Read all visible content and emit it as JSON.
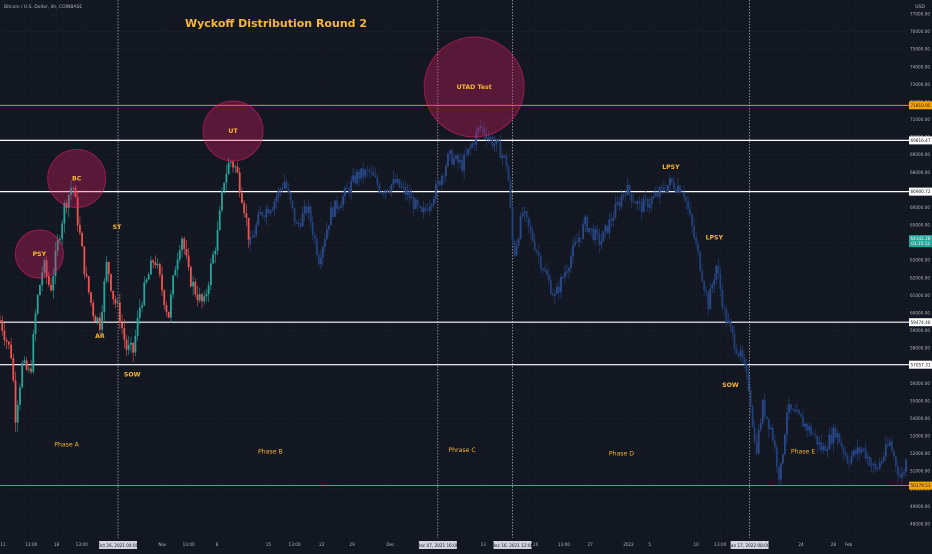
{
  "header": {
    "symbol_line": "Bitcoin / U.S. Dollar, 4h, COINBASE",
    "currency": "USD"
  },
  "chart_data": {
    "type": "candlestick",
    "title": "Wyckoff Distribution Round 2",
    "xlabel": "",
    "ylabel": "",
    "ylim": [
      47200,
      77800
    ],
    "y_ticks": [
      48000,
      49000,
      50000,
      51000,
      52000,
      53000,
      54000,
      55000,
      56000,
      57000,
      58000,
      59000,
      60000,
      61000,
      62000,
      63000,
      64000,
      65000,
      66000,
      67000,
      68000,
      69000,
      70000,
      71000,
      72000,
      73000,
      74000,
      75000,
      76000,
      77000
    ],
    "y_tick_labels": [
      "48000.00",
      "49000.00",
      "50000.00",
      "51000.00",
      "52000.00",
      "53000.00",
      "54000.00",
      "55000.00",
      "56000.00",
      "57000.00",
      "58000.00",
      "59000.00",
      "60000.00",
      "61000.00",
      "62000.00",
      "63000.00",
      "64000.00",
      "65000.00",
      "66000.00",
      "67000.00",
      "68000.00",
      "69000.00",
      "70000.00",
      "71000.00",
      "72000.00",
      "73000.00",
      "74000.00",
      "75000.00",
      "76000.00",
      "77000.00"
    ],
    "x_ticks": [
      {
        "x": 0.3,
        "label": "11"
      },
      {
        "x": 3.1,
        "label": "13:00"
      },
      {
        "x": 5.6,
        "label": "18"
      },
      {
        "x": 8.1,
        "label": "13:00"
      },
      {
        "x": 16.1,
        "label": "Nov"
      },
      {
        "x": 18.7,
        "label": "13:00"
      },
      {
        "x": 21.5,
        "label": "8"
      },
      {
        "x": 26.6,
        "label": "15"
      },
      {
        "x": 29.2,
        "label": "13:00"
      },
      {
        "x": 31.9,
        "label": "22"
      },
      {
        "x": 34.9,
        "label": "29"
      },
      {
        "x": 38.7,
        "label": "Dec"
      },
      {
        "x": 47.9,
        "label": "13"
      },
      {
        "x": 53.1,
        "label": "20"
      },
      {
        "x": 55.9,
        "label": "13:00"
      },
      {
        "x": 58.5,
        "label": "27"
      },
      {
        "x": 62.3,
        "label": "2022"
      },
      {
        "x": 64.4,
        "label": "5"
      },
      {
        "x": 69.0,
        "label": "10"
      },
      {
        "x": 71.4,
        "label": "13:00"
      },
      {
        "x": 79.4,
        "label": "24"
      },
      {
        "x": 82.6,
        "label": "28"
      },
      {
        "x": 84.1,
        "label": "Feb"
      }
    ],
    "xlim": [
      0,
      90
    ],
    "grid": true,
    "date_markers": [
      {
        "x": 11.7,
        "label": "Oct 26, 2021 04:00"
      },
      {
        "x": 43.4,
        "label": "Dec 07, 2021 16:00"
      },
      {
        "x": 50.8,
        "label": "Dec 16, 2021 12:00"
      },
      {
        "x": 74.3,
        "label": "Jan 17, 2022 08:00"
      }
    ],
    "horizontal_levels": [
      {
        "value": 71810.95,
        "label": "71810.95",
        "color": "#f7a600"
      },
      {
        "value": 69816.47,
        "label": "69816.47",
        "color": "#ffffff"
      },
      {
        "value": 66900.72,
        "label": "66900.72",
        "color": "#ffffff"
      },
      {
        "value": 59474.46,
        "label": "59474.46",
        "color": "#ffffff"
      },
      {
        "value": 57057.31,
        "label": "57057.31",
        "color": "#ffffff"
      },
      {
        "value": 50179.53,
        "label": "50179.53",
        "color": "#f7a600"
      }
    ],
    "last_price": {
      "value": 64142.28,
      "label": "64142.28",
      "countdown": "03:15:12",
      "color": "#26a69a"
    },
    "events": [
      {
        "label": "PSY",
        "x": 3.9,
        "y": 63350,
        "circle": true
      },
      {
        "label": "BC",
        "x": 7.6,
        "y": 67650,
        "circle": true
      },
      {
        "label": "UT",
        "x": 23.1,
        "y": 70350,
        "circle": true
      },
      {
        "label": "UTAD Test",
        "x": 47.0,
        "y": 72850,
        "circle": true
      },
      {
        "label": "ST",
        "x": 11.6,
        "y": 64900,
        "circle": false
      },
      {
        "label": "AR",
        "x": 9.9,
        "y": 58700,
        "circle": false
      },
      {
        "label": "SOW",
        "x": 13.1,
        "y": 56500,
        "circle": false
      },
      {
        "label": "LPSY",
        "x": 66.5,
        "y": 68300,
        "circle": false
      },
      {
        "label": "LPSY",
        "x": 70.8,
        "y": 64300,
        "circle": false
      },
      {
        "label": "SOW",
        "x": 72.4,
        "y": 55900,
        "circle": false
      }
    ],
    "phases": [
      {
        "label": "Phase A",
        "x": 6.6,
        "y": 52400
      },
      {
        "label": "Phase B",
        "x": 26.8,
        "y": 52000
      },
      {
        "label": "Phrase C",
        "x": 45.8,
        "y": 52100
      },
      {
        "label": "Phase D",
        "x": 61.6,
        "y": 51900
      },
      {
        "label": "Phase E",
        "x": 79.6,
        "y": 52000
      }
    ],
    "candle_path": [
      [
        0,
        59600
      ],
      [
        1.2,
        57500
      ],
      [
        1.5,
        54000
      ],
      [
        2.2,
        57000
      ],
      [
        3.0,
        56500
      ],
      [
        3.6,
        60400
      ],
      [
        4.3,
        62800
      ],
      [
        5.0,
        61300
      ],
      [
        5.8,
        64200
      ],
      [
        6.4,
        66100
      ],
      [
        7.2,
        67400
      ],
      [
        7.8,
        64900
      ],
      [
        8.5,
        62000
      ],
      [
        9.2,
        60100
      ],
      [
        9.9,
        59400
      ],
      [
        10.6,
        62900
      ],
      [
        11.2,
        61000
      ],
      [
        11.8,
        60000
      ],
      [
        12.5,
        58000
      ],
      [
        13.2,
        57800
      ],
      [
        13.9,
        60500
      ],
      [
        14.6,
        61900
      ],
      [
        15.3,
        63200
      ],
      [
        16.0,
        61500
      ],
      [
        16.7,
        59800
      ],
      [
        17.4,
        62800
      ],
      [
        18.0,
        64500
      ],
      [
        18.7,
        62200
      ],
      [
        19.4,
        61200
      ],
      [
        20.2,
        60400
      ],
      [
        20.9,
        62600
      ],
      [
        21.6,
        64600
      ],
      [
        22.2,
        67600
      ],
      [
        22.8,
        68700
      ],
      [
        23.4,
        68200
      ],
      [
        24.1,
        66400
      ],
      [
        24.8,
        63900
      ]
    ],
    "faded_path": [
      [
        24.8,
        63900
      ],
      [
        25.8,
        65600
      ],
      [
        27.0,
        66200
      ],
      [
        28.2,
        67500
      ],
      [
        29.4,
        64900
      ],
      [
        30.5,
        66000
      ],
      [
        31.6,
        63100
      ],
      [
        32.8,
        65700
      ],
      [
        34.0,
        66600
      ],
      [
        35.4,
        67800
      ],
      [
        36.6,
        68000
      ],
      [
        37.8,
        67000
      ],
      [
        39.2,
        67400
      ],
      [
        40.6,
        66600
      ],
      [
        41.8,
        65500
      ],
      [
        43.2,
        67000
      ],
      [
        44.5,
        68900
      ],
      [
        45.8,
        68400
      ],
      [
        46.8,
        69600
      ],
      [
        47.6,
        70600
      ],
      [
        48.6,
        69900
      ],
      [
        49.6,
        69200
      ],
      [
        50.3,
        68400
      ],
      [
        50.9,
        63200
      ],
      [
        51.8,
        65700
      ],
      [
        52.8,
        64200
      ],
      [
        53.8,
        62600
      ],
      [
        55.0,
        60900
      ],
      [
        56.5,
        63100
      ],
      [
        58.0,
        65100
      ],
      [
        59.5,
        64000
      ],
      [
        60.8,
        65600
      ],
      [
        62.0,
        67100
      ],
      [
        63.5,
        66000
      ],
      [
        65.0,
        66600
      ],
      [
        66.4,
        67400
      ],
      [
        67.7,
        67100
      ],
      [
        68.5,
        65100
      ],
      [
        69.3,
        63000
      ],
      [
        70.2,
        60500
      ],
      [
        71.0,
        62700
      ],
      [
        71.8,
        60000
      ],
      [
        72.7,
        58500
      ],
      [
        73.6,
        57200
      ],
      [
        74.3,
        55600
      ],
      [
        74.9,
        52000
      ],
      [
        75.6,
        54700
      ],
      [
        76.5,
        53300
      ],
      [
        77.3,
        50500
      ],
      [
        78.0,
        54500
      ],
      [
        79.2,
        54000
      ],
      [
        80.5,
        53200
      ],
      [
        81.5,
        52200
      ],
      [
        82.8,
        53300
      ],
      [
        84.0,
        51700
      ],
      [
        85.5,
        52300
      ],
      [
        86.8,
        51000
      ],
      [
        88.2,
        52600
      ],
      [
        89.3,
        50500
      ],
      [
        90.0,
        52000
      ]
    ]
  }
}
